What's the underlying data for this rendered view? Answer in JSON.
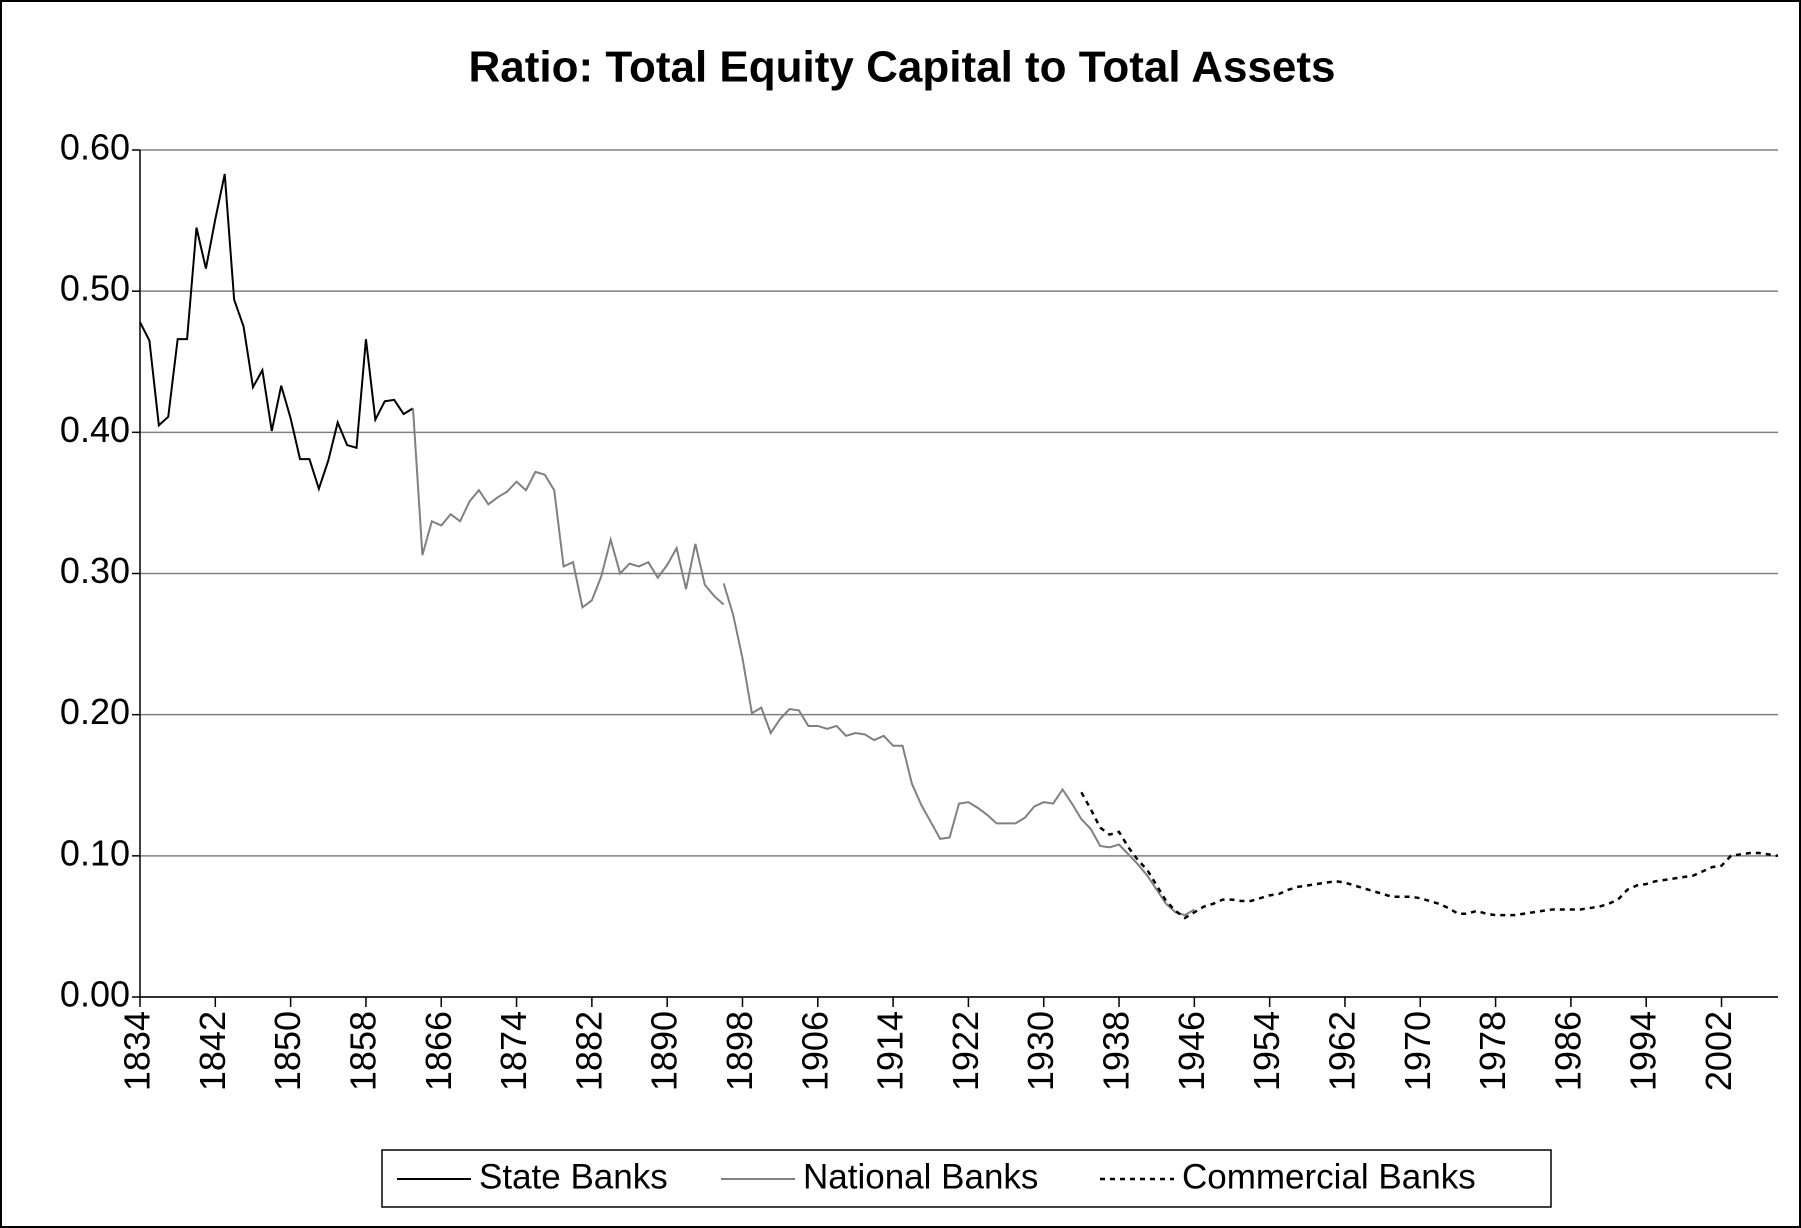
{
  "chart_data": {
    "type": "line",
    "title": "Ratio: Total Equity Capital to Total Assets",
    "xlim": [
      1834,
      2008
    ],
    "xticks": [
      1834,
      1842,
      1850,
      1858,
      1866,
      1874,
      1882,
      1890,
      1898,
      1906,
      1914,
      1922,
      1930,
      1938,
      1946,
      1954,
      1962,
      1970,
      1978,
      1986,
      1994,
      2002
    ],
    "ylim": [
      0,
      0.6
    ],
    "yticks": [
      {
        "value": 0,
        "label": "0.00"
      },
      {
        "value": 0.1,
        "label": "0.10"
      },
      {
        "value": 0.2,
        "label": "0.20"
      },
      {
        "value": 0.3,
        "label": "0.30"
      },
      {
        "value": 0.4,
        "label": "0.40"
      },
      {
        "value": 0.5,
        "label": "0.50"
      },
      {
        "value": 0.6,
        "label": "0.60"
      }
    ],
    "grid": true,
    "legend": "bottom",
    "series": [
      {
        "name": "State Banks",
        "color": "#000000",
        "line_style": "solid",
        "x": [
          1834,
          1835,
          1836,
          1837,
          1838,
          1839,
          1840,
          1841,
          1842,
          1843,
          1844,
          1845,
          1846,
          1847,
          1848,
          1849,
          1850,
          1851,
          1852,
          1853,
          1854,
          1855,
          1856,
          1857,
          1858,
          1859,
          1860,
          1861,
          1862,
          1863
        ],
        "values": [
          0.478,
          0.465,
          0.405,
          0.411,
          0.466,
          0.466,
          0.545,
          0.516,
          0.551,
          0.583,
          0.494,
          0.475,
          0.432,
          0.444,
          0.401,
          0.433,
          0.41,
          0.381,
          0.381,
          0.36,
          0.38,
          0.407,
          0.391,
          0.389,
          0.466,
          0.409,
          0.422,
          0.423,
          0.413,
          0.417
        ]
      },
      {
        "name": "National Banks",
        "color": "#808080",
        "line_style": "solid",
        "x": [
          1863,
          1864,
          1865,
          1866,
          1867,
          1868,
          1869,
          1870,
          1871,
          1872,
          1873,
          1874,
          1875,
          1876,
          1877,
          1878,
          1879,
          1880,
          1881,
          1882,
          1883,
          1884,
          1885,
          1886,
          1887,
          1888,
          1889,
          1890,
          1891,
          1892,
          1893,
          1894,
          1895,
          1896,
          1896,
          1896,
          1897,
          1898,
          1899,
          1900,
          1901,
          1902,
          1903,
          1904,
          1905,
          1906,
          1907,
          1908,
          1909,
          1910,
          1911,
          1912,
          1913,
          1914,
          1915,
          1916,
          1917,
          1918,
          1919,
          1920,
          1921,
          1922,
          1923,
          1924,
          1925,
          1926,
          1927,
          1928,
          1929,
          1930,
          1931,
          1932,
          1933,
          1934,
          1935,
          1936,
          1937,
          1938,
          1939,
          1940,
          1941,
          1942,
          1943,
          1944,
          1945,
          1946
        ],
        "values": [
          0.417,
          0.313,
          0.337,
          0.334,
          0.342,
          0.337,
          0.351,
          0.359,
          0.349,
          0.354,
          0.358,
          0.365,
          0.359,
          0.372,
          0.37,
          0.359,
          0.305,
          0.308,
          0.276,
          0.281,
          0.298,
          0.324,
          0.3,
          0.307,
          0.305,
          0.308,
          0.297,
          0.306,
          0.318,
          0.289,
          0.321,
          0.292,
          0.284,
          0.278,
          null,
          0.293,
          0.271,
          0.24,
          0.201,
          0.205,
          0.187,
          0.197,
          0.204,
          0.203,
          0.192,
          0.192,
          0.19,
          0.192,
          0.185,
          0.187,
          0.186,
          0.182,
          0.185,
          0.178,
          0.178,
          0.151,
          0.136,
          0.124,
          0.112,
          0.113,
          0.137,
          0.138,
          0.134,
          0.129,
          0.123,
          0.123,
          0.123,
          0.127,
          0.135,
          0.138,
          0.137,
          0.147,
          0.137,
          0.126,
          0.119,
          0.107,
          0.106,
          0.108,
          0.101,
          0.094,
          0.086,
          0.076,
          0.066,
          0.06,
          0.058,
          0.062
        ]
      },
      {
        "name": "Commercial Banks",
        "color": "#000000",
        "line_style": "dotted",
        "x": [
          1934,
          1935,
          1936,
          1937,
          1938,
          1939,
          1940,
          1941,
          1942,
          1943,
          1944,
          1945,
          1946,
          1947,
          1948,
          1949,
          1950,
          1951,
          1952,
          1953,
          1954,
          1955,
          1956,
          1957,
          1958,
          1959,
          1960,
          1961,
          1962,
          1963,
          1964,
          1965,
          1966,
          1967,
          1968,
          1969,
          1970,
          1971,
          1972,
          1973,
          1974,
          1975,
          1976,
          1977,
          1978,
          1979,
          1980,
          1981,
          1982,
          1983,
          1984,
          1985,
          1986,
          1987,
          1988,
          1989,
          1990,
          1991,
          1992,
          1993,
          1994,
          1995,
          1996,
          1997,
          1998,
          1999,
          2000,
          2001,
          2002,
          2003,
          2004,
          2005,
          2006,
          2007,
          2008
        ],
        "values": [
          0.145,
          0.133,
          0.12,
          0.115,
          0.117,
          0.106,
          0.097,
          0.09,
          0.079,
          0.068,
          0.061,
          0.056,
          0.06,
          0.064,
          0.066,
          0.069,
          0.069,
          0.068,
          0.068,
          0.07,
          0.072,
          0.073,
          0.076,
          0.078,
          0.079,
          0.08,
          0.081,
          0.082,
          0.081,
          0.079,
          0.077,
          0.075,
          0.073,
          0.071,
          0.071,
          0.071,
          0.07,
          0.068,
          0.066,
          0.063,
          0.059,
          0.059,
          0.061,
          0.059,
          0.058,
          0.058,
          0.058,
          0.059,
          0.06,
          0.061,
          0.062,
          0.062,
          0.062,
          0.062,
          0.063,
          0.064,
          0.066,
          0.069,
          0.076,
          0.079,
          0.08,
          0.082,
          0.083,
          0.084,
          0.085,
          0.086,
          0.089,
          0.092,
          0.093,
          0.1,
          0.101,
          0.102,
          0.102,
          0.101,
          0.1
        ]
      }
    ]
  }
}
